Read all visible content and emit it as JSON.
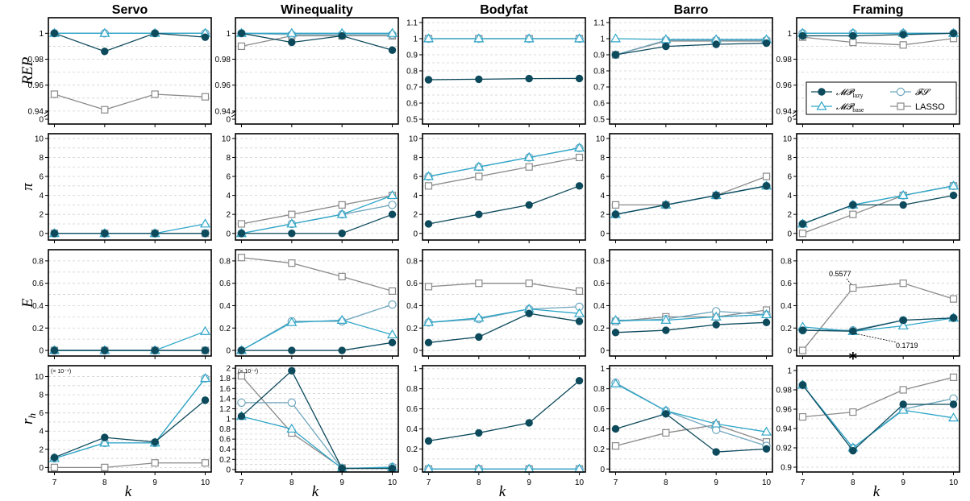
{
  "chart_data": {
    "type": "line",
    "columns": [
      "Servo",
      "Winequality",
      "Bodyfat",
      "Barro",
      "Framing"
    ],
    "rows": [
      "REP",
      "π",
      "E",
      "r_h"
    ],
    "row_labels": [
      "REP",
      "π",
      "E",
      "r",
      "h"
    ],
    "x": [
      7,
      8,
      9,
      10
    ],
    "xlabel": "k",
    "series_meta": [
      {
        "key": "mp_lazy",
        "name": "𝓜𝓟",
        "sub": "lazy",
        "color": "#0d4a5c",
        "marker": "filled-circle"
      },
      {
        "key": "mp_base",
        "name": "𝓜𝓟",
        "sub": "base",
        "color": "#2ea6c8",
        "marker": "triangle"
      },
      {
        "key": "fs",
        "name": "𝓕𝓢",
        "sub": "",
        "color": "#6fa6bd",
        "marker": "circle"
      },
      {
        "key": "lasso",
        "name": "LASSO",
        "sub": "",
        "color": "#8a8a8a",
        "marker": "square"
      }
    ],
    "panels": [
      [
        {
          "ylim": [
            0.93,
            1.012
          ],
          "ticks": [
            0.94,
            0.96,
            0.98,
            1
          ],
          "tick_labels": [
            "0.94",
            "0.96",
            "0.98",
            "1"
          ],
          "bottom_label": "0",
          "broken": true,
          "series": {
            "mp_lazy": [
              1.0,
              0.986,
              1.0,
              0.997
            ],
            "mp_base": [
              1.0,
              1.0,
              1.0,
              1.0
            ],
            "fs": [
              1.0,
              1.0,
              1.0,
              1.0
            ],
            "lasso": [
              0.953,
              0.941,
              0.953,
              0.951
            ]
          }
        },
        {
          "ylim": [
            0.93,
            1.012
          ],
          "ticks": [
            0.94,
            0.96,
            0.98,
            1
          ],
          "tick_labels": [
            "0.94",
            "0.96",
            "0.98",
            "1"
          ],
          "bottom_label": "0",
          "broken": true,
          "series": {
            "mp_lazy": [
              1.0,
              0.993,
              0.998,
              0.987
            ],
            "mp_base": [
              1.0,
              1.0,
              1.0,
              1.0
            ],
            "fs": [
              1.0,
              0.999,
              0.999,
              0.999
            ],
            "lasso": [
              0.99,
              0.998,
              0.998,
              0.998
            ]
          }
        },
        {
          "ylim": [
            0.47,
            1.13
          ],
          "ticks": [
            0.5,
            0.6,
            0.7,
            0.8,
            0.9,
            1,
            1.1
          ],
          "tick_labels": [
            "0.5",
            "0.6",
            "0.7",
            "0.8",
            "0.9",
            "1",
            "1.1"
          ],
          "series": {
            "mp_lazy": [
              0.745,
              0.748,
              0.752,
              0.753
            ],
            "mp_base": [
              1.0,
              1.0,
              1.0,
              1.0
            ],
            "fs": [
              1.0,
              1.0,
              1.0,
              1.0
            ],
            "lasso": [
              1.0,
              1.0,
              1.0,
              1.0
            ]
          }
        },
        {
          "ylim": [
            0.47,
            1.13
          ],
          "ticks": [
            0.5,
            0.6,
            0.7,
            0.8,
            0.9,
            1,
            1.1
          ],
          "tick_labels": [
            "0.5",
            "0.6",
            "0.7",
            "0.8",
            "0.9",
            "1",
            "1.1"
          ],
          "series": {
            "mp_lazy": [
              0.9,
              0.952,
              0.965,
              0.972
            ],
            "mp_base": [
              1.0,
              0.995,
              0.995,
              0.995
            ],
            "fs": [
              0.9,
              0.99,
              0.99,
              0.99
            ],
            "lasso": [
              0.9,
              0.985,
              0.985,
              0.985
            ]
          }
        },
        {
          "ylim": [
            0.93,
            1.012
          ],
          "ticks": [
            0.94,
            0.96,
            0.98,
            1
          ],
          "tick_labels": [
            "0.94",
            "0.96",
            "0.98",
            "1"
          ],
          "bottom_label": "0",
          "broken": true,
          "legend": true,
          "series": {
            "mp_lazy": [
              0.998,
              0.998,
              0.999,
              1.0
            ],
            "mp_base": [
              1.0,
              1.0,
              1.0,
              1.0
            ],
            "fs": [
              1.0,
              1.0,
              1.0,
              1.0
            ],
            "lasso": [
              0.997,
              0.993,
              0.991,
              0.996
            ]
          }
        }
      ],
      [
        {
          "ylim": [
            -0.7,
            10.5
          ],
          "ticks": [
            0,
            2,
            4,
            6,
            8,
            10
          ],
          "tick_labels": [
            "0",
            "2",
            "4",
            "6",
            "8",
            "10"
          ],
          "series": {
            "mp_lazy": [
              0,
              0,
              0,
              0
            ],
            "mp_base": [
              0,
              0,
              0,
              1
            ],
            "fs": [
              0,
              0,
              0,
              0
            ],
            "lasso": [
              0,
              0,
              0,
              0
            ]
          }
        },
        {
          "ylim": [
            -0.7,
            10.5
          ],
          "ticks": [
            0,
            2,
            4,
            6,
            8,
            10
          ],
          "tick_labels": [
            "0",
            "2",
            "4",
            "6",
            "8",
            "10"
          ],
          "series": {
            "mp_lazy": [
              0,
              0,
              0,
              2
            ],
            "mp_base": [
              0,
              1,
              2,
              4
            ],
            "fs": [
              0,
              1,
              2,
              3
            ],
            "lasso": [
              1,
              2,
              3,
              4
            ]
          }
        },
        {
          "ylim": [
            -0.7,
            10.5
          ],
          "ticks": [
            0,
            2,
            4,
            6,
            8,
            10
          ],
          "tick_labels": [
            "0",
            "2",
            "4",
            "6",
            "8",
            "10"
          ],
          "series": {
            "mp_lazy": [
              1,
              2,
              3,
              5
            ],
            "mp_base": [
              6,
              7,
              8,
              9
            ],
            "fs": [
              6,
              7,
              8,
              9
            ],
            "lasso": [
              5,
              6,
              7,
              8
            ]
          }
        },
        {
          "ylim": [
            -0.7,
            10.5
          ],
          "ticks": [
            0,
            2,
            4,
            6,
            8,
            10
          ],
          "tick_labels": [
            "0",
            "2",
            "4",
            "6",
            "8",
            "10"
          ],
          "series": {
            "mp_lazy": [
              2,
              3,
              4,
              5
            ],
            "mp_base": [
              2,
              3,
              4,
              5
            ],
            "fs": [
              2,
              3,
              4,
              5
            ],
            "lasso": [
              3,
              3,
              4,
              6
            ]
          }
        },
        {
          "ylim": [
            -0.7,
            10.5
          ],
          "ticks": [
            0,
            2,
            4,
            6,
            8,
            10
          ],
          "tick_labels": [
            "0",
            "2",
            "4",
            "6",
            "8",
            "10"
          ],
          "series": {
            "mp_lazy": [
              1,
              3,
              3,
              4
            ],
            "mp_base": [
              1,
              3,
              4,
              5
            ],
            "fs": [
              1,
              3,
              4,
              5
            ],
            "lasso": [
              0,
              2,
              4,
              5
            ]
          }
        }
      ],
      [
        {
          "ylim": [
            -0.05,
            0.9
          ],
          "ticks": [
            0,
            0.2,
            0.4,
            0.6,
            0.8
          ],
          "tick_labels": [
            "0",
            "0.2",
            "0.4",
            "0.6",
            "0.8"
          ],
          "series": {
            "mp_lazy": [
              0,
              0,
              0,
              0
            ],
            "mp_base": [
              0,
              0,
              0,
              0.17
            ],
            "fs": [
              0,
              0,
              0,
              0
            ],
            "lasso": [
              0,
              0,
              0,
              0
            ]
          }
        },
        {
          "ylim": [
            -0.05,
            0.9
          ],
          "ticks": [
            0,
            0.2,
            0.4,
            0.6,
            0.8
          ],
          "tick_labels": [
            "0",
            "0.2",
            "0.4",
            "0.6",
            "0.8"
          ],
          "series": {
            "mp_lazy": [
              0,
              0,
              0,
              0.07
            ],
            "mp_base": [
              0,
              0.25,
              0.27,
              0.14
            ],
            "fs": [
              0,
              0.26,
              0.26,
              0.41
            ],
            "lasso": [
              0.83,
              0.78,
              0.66,
              0.53
            ]
          }
        },
        {
          "ylim": [
            -0.05,
            0.9
          ],
          "ticks": [
            0,
            0.2,
            0.4,
            0.6,
            0.8
          ],
          "tick_labels": [
            "0",
            "0.2",
            "0.4",
            "0.6",
            "0.8"
          ],
          "series": {
            "mp_lazy": [
              0.07,
              0.12,
              0.33,
              0.26
            ],
            "mp_base": [
              0.25,
              0.29,
              0.37,
              0.33
            ],
            "fs": [
              0.25,
              0.28,
              0.37,
              0.39
            ],
            "lasso": [
              0.57,
              0.6,
              0.6,
              0.53
            ]
          }
        },
        {
          "ylim": [
            -0.05,
            0.9
          ],
          "ticks": [
            0,
            0.2,
            0.4,
            0.6,
            0.8
          ],
          "tick_labels": [
            "0",
            "0.2",
            "0.4",
            "0.6",
            "0.8"
          ],
          "series": {
            "mp_lazy": [
              0.16,
              0.18,
              0.23,
              0.25
            ],
            "mp_base": [
              0.27,
              0.27,
              0.3,
              0.32
            ],
            "fs": [
              0.26,
              0.28,
              0.35,
              0.32
            ],
            "lasso": [
              0.26,
              0.3,
              0.3,
              0.36
            ]
          }
        },
        {
          "ylim": [
            -0.05,
            0.9
          ],
          "ticks": [
            0,
            0.2,
            0.4,
            0.6,
            0.8
          ],
          "tick_labels": [
            "0",
            "0.2",
            "0.4",
            "0.6",
            "0.8"
          ],
          "annotations": true,
          "series": {
            "mp_lazy": [
              0.18,
              0.1719,
              0.27,
              0.29
            ],
            "mp_base": [
              0.21,
              0.17,
              0.22,
              0.29
            ],
            "fs": [
              0.18,
              0.18,
              0.27,
              0.29
            ],
            "lasso": [
              0,
              0.5577,
              0.6,
              0.46
            ]
          }
        }
      ],
      [
        {
          "ylim": [
            -0.5,
            11.2
          ],
          "ticks": [
            0,
            2,
            4,
            6,
            8,
            10
          ],
          "tick_labels": [
            "0",
            "2",
            "4",
            "6",
            "8",
            "10"
          ],
          "scale_note": "(× 10⁻⁴)",
          "series": {
            "mp_lazy": [
              1.1,
              3.3,
              2.8,
              7.4
            ],
            "mp_base": [
              1.0,
              2.7,
              2.7,
              9.8
            ],
            "fs": [
              1.0,
              2.7,
              2.7,
              9.8
            ],
            "lasso": [
              0,
              0,
              0.5,
              0.5
            ]
          }
        },
        {
          "ylim": [
            -0.05,
            2.05
          ],
          "ticks": [
            0,
            0.2,
            0.4,
            0.6,
            0.8,
            1,
            1.2,
            1.4,
            1.6,
            1.8,
            2
          ],
          "tick_labels": [
            "0",
            "0.2",
            "0.4",
            "0.6",
            "0.8",
            "1",
            "1.2",
            "1.4",
            "1.6",
            "1.8",
            "2"
          ],
          "scale_note": "(× 10⁻⁴)",
          "series": {
            "mp_lazy": [
              1.05,
              1.95,
              0.02,
              0.02
            ],
            "mp_base": [
              1.05,
              0.8,
              0.02,
              0.04
            ],
            "fs": [
              1.32,
              1.32,
              0.02,
              0.05
            ],
            "lasso": [
              1.85,
              0.72,
              0.03,
              0.03
            ]
          }
        },
        {
          "ylim": [
            -0.03,
            1.03
          ],
          "ticks": [
            0,
            0.2,
            0.4,
            0.6,
            0.8,
            1
          ],
          "tick_labels": [
            "0",
            "0.2",
            "0.4",
            "0.6",
            "0.8",
            "1"
          ],
          "series": {
            "mp_lazy": [
              0.28,
              0.36,
              0.46,
              0.88
            ],
            "mp_base": [
              0,
              0,
              0,
              0
            ],
            "fs": [
              0,
              0,
              0,
              0
            ],
            "lasso": [
              0,
              0,
              0,
              0
            ]
          }
        },
        {
          "ylim": [
            -0.03,
            1.03
          ],
          "ticks": [
            0,
            0.2,
            0.4,
            0.6,
            0.8,
            1
          ],
          "tick_labels": [
            "0",
            "0.2",
            "0.4",
            "0.6",
            "0.8",
            "1"
          ],
          "series": {
            "mp_lazy": [
              0.4,
              0.55,
              0.17,
              0.2
            ],
            "mp_base": [
              0.85,
              0.58,
              0.45,
              0.37
            ],
            "fs": [
              0.86,
              0.58,
              0.39,
              0.23
            ],
            "lasso": [
              0.23,
              0.36,
              0.44,
              0.27
            ]
          }
        },
        {
          "ylim": [
            0.895,
            1.005
          ],
          "ticks": [
            0.9,
            0.92,
            0.94,
            0.96,
            0.98,
            1
          ],
          "tick_labels": [
            "0.9",
            "0.92",
            "0.94",
            "0.96",
            "0.98",
            "1"
          ],
          "star": true,
          "series": {
            "mp_lazy": [
              0.985,
              0.917,
              0.965,
              0.965
            ],
            "mp_base": [
              0.985,
              0.92,
              0.959,
              0.951
            ],
            "fs": [
              0.985,
              0.92,
              0.96,
              0.971
            ],
            "lasso": [
              0.952,
              0.957,
              0.98,
              0.993
            ]
          }
        }
      ]
    ],
    "legend": [
      {
        "key": "mp_lazy",
        "text": "𝓜𝓟",
        "sub": "lazy"
      },
      {
        "key": "fs",
        "text": "𝓕𝓢",
        "sub": ""
      },
      {
        "key": "mp_base",
        "text": "𝓜𝓟",
        "sub": "base"
      },
      {
        "key": "lasso",
        "text": "LASSO",
        "sub": ""
      }
    ],
    "annotations": [
      {
        "text": "0.5577"
      },
      {
        "text": "0.1719"
      }
    ],
    "star_label": "*"
  }
}
